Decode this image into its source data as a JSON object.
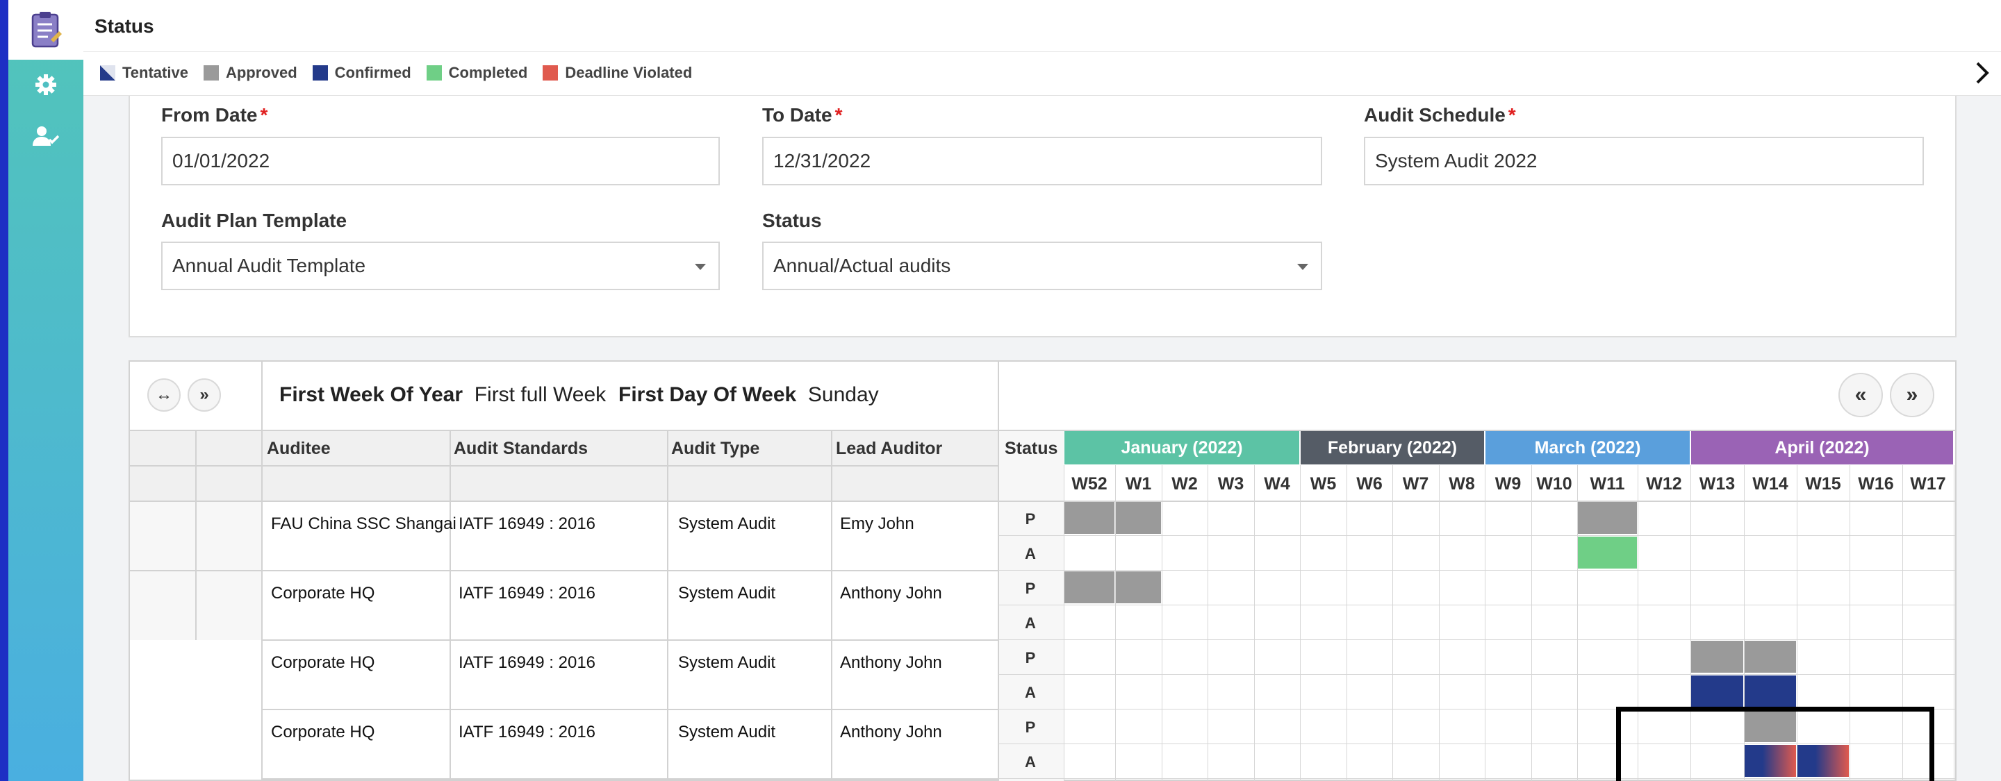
{
  "status": {
    "title": "Status",
    "legend": [
      {
        "label": "Tentative",
        "color": "#233a8a",
        "style": "triangle"
      },
      {
        "label": "Approved",
        "color": "#9a9a9a"
      },
      {
        "label": "Confirmed",
        "color": "#233a8a"
      },
      {
        "label": "Completed",
        "color": "#6fcf86"
      },
      {
        "label": "Deadline Violated",
        "color": "#e05a4e"
      }
    ]
  },
  "filters": {
    "from_date": {
      "label": "From Date",
      "required": "*",
      "value": "01/01/2022"
    },
    "to_date": {
      "label": "To Date",
      "required": "*",
      "value": "12/31/2022"
    },
    "audit_schedule": {
      "label": "Audit Schedule",
      "required": "*",
      "value": "System Audit 2022"
    },
    "audit_plan_template": {
      "label": "Audit Plan Template",
      "value": "Annual Audit Template"
    },
    "status": {
      "label": "Status",
      "value": "Annual/Actual audits"
    }
  },
  "gantt": {
    "expand_button": "↔",
    "collapse_button": "»",
    "prev_button": "«",
    "next_button": "»",
    "first_week_label": "First Week Of Year",
    "first_week_value": "First full Week",
    "first_day_label": "First Day Of Week",
    "first_day_value": "Sunday",
    "columns": [
      "Auditee",
      "Audit Standards",
      "Audit Type",
      "Lead Auditor",
      "Status"
    ],
    "months": [
      {
        "label": "January (2022)",
        "color": "#5cc3a5"
      },
      {
        "label": "February (2022)",
        "color": "#555c66"
      },
      {
        "label": "March (2022)",
        "color": "#5a9fdc"
      },
      {
        "label": "April (2022)",
        "color": "#9a63b5"
      }
    ],
    "weeks": [
      "W52",
      "W1",
      "W2",
      "W3",
      "W4",
      "W5",
      "W6",
      "W7",
      "W8",
      "W9",
      "W10",
      "W11",
      "W12",
      "W13",
      "W14",
      "W15",
      "W16",
      "W17"
    ],
    "rows": [
      {
        "auditee": "FAU China SSC Shangai",
        "standard": "IATF 16949 : 2016",
        "type": "System Audit",
        "lead": "Emy John",
        "plan": "P",
        "actual": "A"
      },
      {
        "auditee": "Corporate HQ",
        "standard": "IATF 16949 : 2016",
        "type": "System Audit",
        "lead": "Anthony John",
        "plan": "P",
        "actual": "A"
      },
      {
        "auditee": "Corporate HQ",
        "standard": "IATF 16949 : 2016",
        "type": "System Audit",
        "lead": "Anthony John",
        "plan": "P",
        "actual": "A"
      },
      {
        "auditee": "Corporate HQ",
        "standard": "IATF 16949 : 2016",
        "type": "System Audit",
        "lead": "Anthony John",
        "plan": "P",
        "actual": "A"
      }
    ],
    "bars": [
      {
        "row": 0,
        "track": "P",
        "weeks": [
          "W52",
          "W1"
        ],
        "status": "Approved"
      },
      {
        "row": 0,
        "track": "P",
        "weeks": [
          "W11"
        ],
        "status": "Approved"
      },
      {
        "row": 0,
        "track": "A",
        "weeks": [
          "W11"
        ],
        "status": "Completed"
      },
      {
        "row": 1,
        "track": "P",
        "weeks": [
          "W52",
          "W1"
        ],
        "status": "Approved"
      },
      {
        "row": 2,
        "track": "P",
        "weeks": [
          "W13",
          "W14"
        ],
        "status": "Approved"
      },
      {
        "row": 2,
        "track": "A",
        "weeks": [
          "W13",
          "W14"
        ],
        "status": "Confirmed"
      },
      {
        "row": 3,
        "track": "P",
        "weeks": [
          "W14"
        ],
        "status": "Approved"
      },
      {
        "row": 3,
        "track": "A",
        "weeks": [
          "W14",
          "W15"
        ],
        "status": "Deadline Violated"
      }
    ]
  }
}
